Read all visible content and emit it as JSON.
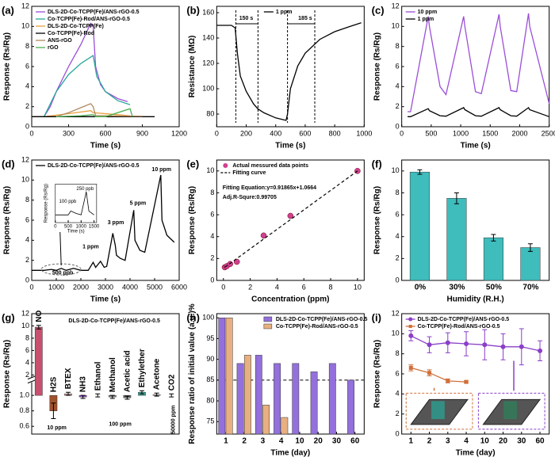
{
  "chart_data": [
    {
      "label": "(a)",
      "type": "line",
      "xlabel": "Time (s)",
      "ylabel": "Response (Rs/Rg)",
      "xlim": [
        0,
        1200
      ],
      "ylim": [
        0,
        12
      ],
      "xticks": [
        0,
        300,
        600,
        900,
        1200
      ],
      "yticks": [
        0,
        2,
        4,
        6,
        8,
        10,
        12
      ],
      "legend": "upper left",
      "series": [
        {
          "name": "DLS-2D-Co-TCPP(Fe)/ANS-rGO-0.5",
          "color": "#9b4fd8",
          "x": [
            0,
            100,
            150,
            200,
            300,
            400,
            480,
            500,
            520,
            560,
            600,
            700,
            780
          ],
          "values": [
            1,
            1,
            2,
            3.5,
            6,
            8.2,
            10.3,
            10,
            6,
            4.2,
            3.5,
            2.8,
            2.5
          ]
        },
        {
          "name": "Co-TCPP(Fe)-Rod/ANS-rGO-0.5",
          "color": "#2aa89a",
          "x": [
            0,
            100,
            200,
            300,
            400,
            500,
            530,
            600,
            700,
            800
          ],
          "values": [
            1,
            1,
            3.5,
            5.2,
            6.3,
            7.1,
            5,
            3.5,
            2.6,
            2.2
          ]
        },
        {
          "name": "DLS-2D-Co-TCPP(Fe)",
          "color": "#e8a040",
          "x": [
            0,
            100,
            300,
            480,
            500,
            700,
            800
          ],
          "values": [
            1,
            1,
            1.3,
            1.6,
            1.4,
            1.2,
            1.1
          ]
        },
        {
          "name": "Co-TCPP(Fe)-Rod",
          "color": "#000000",
          "x": [
            0,
            100,
            500,
            900,
            1000
          ],
          "values": [
            1,
            1,
            1,
            1,
            1
          ]
        },
        {
          "name": "ANS-rGO",
          "color": "#b08860",
          "x": [
            200,
            300,
            400,
            480,
            500,
            520,
            900
          ],
          "values": [
            1,
            1.4,
            1.9,
            2.3,
            2,
            1.1,
            1.05
          ]
        },
        {
          "name": "rGO",
          "color": "#4caf50",
          "x": [
            200,
            400,
            500,
            520,
            600,
            800,
            820
          ],
          "values": [
            1,
            1.1,
            1.2,
            1,
            1,
            1.8,
            1
          ]
        }
      ]
    },
    {
      "label": "(b)",
      "type": "line",
      "xlabel": "Time (s)",
      "ylabel": "Resistance (MΩ)",
      "xlim": [
        0,
        1000
      ],
      "ylim": [
        70,
        165
      ],
      "xticks": [
        0,
        200,
        400,
        600,
        800,
        1000
      ],
      "yticks": [
        80,
        100,
        120,
        140,
        160
      ],
      "legend": "upper right",
      "annotations": [
        "150 s",
        "185 s"
      ],
      "series": [
        {
          "name": "1 ppm",
          "color": "#000000",
          "x": [
            0,
            100,
            125,
            140,
            160,
            200,
            250,
            280,
            320,
            400,
            470,
            480,
            500,
            550,
            600,
            700,
            800,
            900,
            980
          ],
          "values": [
            150,
            150,
            148,
            128,
            110,
            98,
            88,
            84,
            81,
            77,
            75,
            80,
            100,
            118,
            128,
            139,
            145,
            149,
            152
          ]
        }
      ]
    },
    {
      "label": "(c)",
      "type": "line",
      "xlabel": "Time (s)",
      "ylabel": "Response (Rs/Rg)",
      "xlim": [
        0,
        2500
      ],
      "ylim": [
        0,
        12
      ],
      "xticks": [
        0,
        500,
        1000,
        1500,
        2000,
        2500
      ],
      "yticks": [
        0,
        2,
        4,
        6,
        8,
        10,
        12
      ],
      "legend": "upper left",
      "series": [
        {
          "name": "10 ppm",
          "color": "#9b4fd8",
          "x": [
            100,
            150,
            450,
            470,
            650,
            750,
            1050,
            1070,
            1250,
            1350,
            1650,
            1670,
            1850,
            1950,
            2150,
            2170,
            2500
          ],
          "values": [
            1.5,
            1.5,
            11,
            10,
            4,
            3.2,
            11,
            10,
            3.5,
            3.3,
            11.2,
            10,
            3.6,
            3.5,
            11.3,
            10,
            2.3
          ]
        },
        {
          "name": "1 ppm",
          "color": "#000000",
          "x": [
            100,
            150,
            450,
            470,
            650,
            750,
            1050,
            1070,
            1250,
            1350,
            1650,
            1670,
            1850,
            1950,
            2150,
            2170,
            2500
          ],
          "values": [
            1,
            1,
            1.8,
            1.6,
            1.1,
            1.05,
            1.9,
            1.7,
            1.1,
            1.05,
            1.9,
            1.7,
            1.1,
            1.05,
            1.9,
            1.7,
            1
          ]
        }
      ]
    },
    {
      "label": "(d)",
      "type": "line",
      "xlabel": "Time (s)",
      "ylabel": "Response (Rs/Rg)",
      "xlim": [
        0,
        6000
      ],
      "ylim": [
        0,
        12
      ],
      "xticks": [
        0,
        1000,
        2000,
        3000,
        4000,
        5000,
        6000
      ],
      "yticks": [
        0,
        2,
        4,
        6,
        8,
        10,
        12
      ],
      "legend": "upper left",
      "annotations": [
        "10 ppm",
        "5 ppm",
        "3 ppm",
        "1 ppm",
        "500 ppb"
      ],
      "series": [
        {
          "name": "DLS-2D-Co-TCPP(Fe)/ANS-rGO-0.5",
          "color": "#000000",
          "x": [
            0,
            500,
            800,
            1000,
            1200,
            1400,
            1700,
            2000,
            2300,
            2500,
            2600,
            2800,
            2950,
            3050,
            3300,
            3400,
            3450,
            3600,
            3800,
            4150,
            4200,
            4400,
            4600,
            5250,
            5300,
            5500,
            5800
          ],
          "values": [
            1,
            1,
            1.1,
            1,
            1.2,
            1,
            1.2,
            1,
            1,
            1.8,
            1.3,
            1.9,
            1.3,
            1.4,
            4.7,
            3.5,
            2.5,
            2.2,
            2,
            7,
            4,
            3,
            2.8,
            10.5,
            6,
            4.5,
            3.8
          ]
        }
      ],
      "inset": {
        "type": "line",
        "xlabel": "Time (s)",
        "ylabel": "Response (Rs/Rg)",
        "xlim": [
          0,
          1600
        ],
        "ylim": [
          0.9,
          1.4
        ],
        "xticks": [
          0,
          500,
          1000,
          1500
        ],
        "annotations": [
          "100 ppb",
          "250 ppb"
        ],
        "series": [
          {
            "color": "#000000",
            "x": [
              0,
              250,
              500,
              600,
              800,
              1000,
              1200,
              1300,
              1500
            ],
            "values": [
              1,
              1,
              1,
              1.05,
              1.02,
              1,
              1.3,
              1.05,
              1
            ]
          }
        ]
      }
    },
    {
      "label": "(e)",
      "type": "scatter",
      "xlabel": "Concentration (ppm)",
      "ylabel": "Response (Rs/Rg)",
      "xlim": [
        -0.5,
        10.5
      ],
      "ylim": [
        0,
        11
      ],
      "xticks": [
        0,
        2,
        4,
        6,
        8,
        10
      ],
      "yticks": [
        0,
        2,
        4,
        6,
        8,
        10
      ],
      "legend": "upper left",
      "annotations": [
        "Fitting Equation:y=0.91865x+1.0664",
        "Adj.R-Squre:0.99705"
      ],
      "series": [
        {
          "name": "Actual messured data points",
          "color": "#d04090",
          "x": [
            0.1,
            0.25,
            0.5,
            1,
            3,
            5,
            10
          ],
          "values": [
            1.2,
            1.3,
            1.5,
            1.7,
            4.1,
            5.9,
            10
          ]
        },
        {
          "name": "Fitting curve",
          "color": "#000000",
          "dash": true
        }
      ]
    },
    {
      "label": "(f)",
      "type": "bar",
      "xlabel": "Humidity (R.H.)",
      "ylabel": "Response (Rs/Rg)",
      "ylim": [
        0,
        11
      ],
      "yticks": [
        0,
        2,
        4,
        6,
        8,
        10
      ],
      "color": "#3fbcbc",
      "categories": [
        "0%",
        "30%",
        "50%",
        "70%"
      ],
      "values": [
        9.9,
        7.5,
        3.9,
        3.0
      ],
      "errors": [
        0.2,
        0.5,
        0.3,
        0.35
      ]
    },
    {
      "label": "(g)",
      "type": "bar",
      "ylabel": "Response (Rs/Rg)",
      "ylim_lower": [
        0.5,
        1.2
      ],
      "ylim_upper": [
        1.2,
        12
      ],
      "bar_base": 1,
      "yticks": [
        0.6,
        0.8,
        {
          "value": 1,
          "label": "1.0"
        },
        2,
        4,
        6,
        8,
        10,
        12
      ],
      "annotations": [
        "DLS-2D-Co-TCPP(Fe)/ANS-rGO-0.5",
        "10 ppm",
        "100 ppm",
        "50000 ppm"
      ],
      "categories": [
        "NO",
        "H2S",
        "BTEX",
        "NH3",
        "Ethanol",
        "Methanol",
        "Acetic acid",
        "Ethylether",
        "Acetone",
        "CO2"
      ],
      "values": [
        9.8,
        0.8,
        1.02,
        0.98,
        1.0,
        0.98,
        0.97,
        1.04,
        1.01,
        1.0
      ],
      "errors": [
        0.3,
        0.1,
        0.02,
        0.02,
        0.02,
        0.02,
        0.02,
        0.02,
        0.02,
        0.02
      ],
      "colors": [
        "#c8506e",
        "#a0522d",
        "#d4a0a0",
        "#9b4fd8",
        "#b0b0b0",
        "#909090",
        "#707070",
        "#40b0a0",
        "#c0c0c0",
        "#808080"
      ]
    },
    {
      "label": "(h)",
      "type": "bar",
      "xlabel": "Time (day)",
      "ylabel": "Response ratio of initial value (a.u.)%",
      "ylim": [
        72,
        101
      ],
      "yticks": [
        75,
        80,
        85,
        90,
        95,
        100
      ],
      "hline": 85,
      "legend": "upper right",
      "categories": [
        "1",
        "2",
        "3",
        "4",
        "10",
        "20",
        "30",
        "60"
      ],
      "series": [
        {
          "name": "DLS-2D-Co-TCPP(Fe)/ANS-rGO-0.5",
          "color": "#9370db",
          "values": [
            100,
            89,
            91,
            89,
            89,
            87,
            89,
            85
          ]
        },
        {
          "name": "Co-TCPP(Fe)-Rod/ANS-rGO-0.5",
          "color": "#e8b080",
          "values": [
            100,
            91,
            79,
            76,
            null,
            null,
            null,
            null
          ]
        }
      ]
    },
    {
      "label": "(i)",
      "type": "line",
      "xlabel": "Time (day)",
      "ylabel": "Response (Rs/Rg)",
      "ylim": [
        0,
        12
      ],
      "yticks": [
        0,
        2,
        4,
        6,
        8,
        10,
        12
      ],
      "legend": "upper left",
      "categories": [
        "1",
        "2",
        "3",
        "4",
        "10",
        "20",
        "30",
        "60"
      ],
      "series": [
        {
          "name": "DLS-2D-Co-TCPP(Fe)/ANS-rGO-0.5",
          "color": "#8a3fc8",
          "marker": "circle",
          "values": [
            9.8,
            8.9,
            9.1,
            9.0,
            8.9,
            8.7,
            8.7,
            8.3
          ],
          "errors": [
            0.5,
            0.8,
            1,
            1.2,
            1.5,
            1.3,
            1.8,
            1
          ]
        },
        {
          "name": "Co-TCPP(Fe)-Rod/ANS-rGO-0.5",
          "color": "#d0703a",
          "marker": "square",
          "values": [
            6.6,
            6.1,
            5.3,
            5.2,
            null,
            null,
            null,
            null
          ],
          "errors": [
            0.3,
            0.3,
            0.2,
            0.1,
            null,
            null,
            null,
            null
          ]
        }
      ]
    }
  ]
}
